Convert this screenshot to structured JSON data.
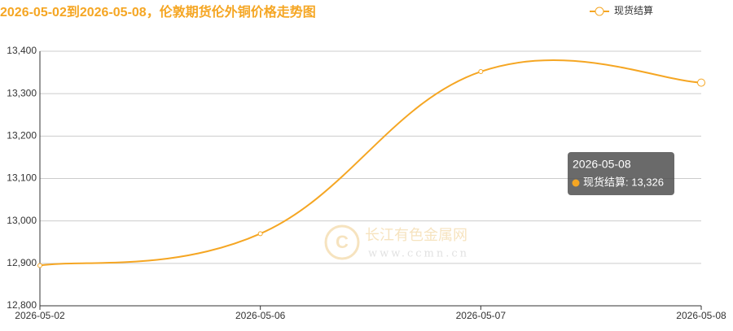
{
  "chart_data": {
    "type": "line",
    "title": "2026-05-02到2026-05-08，伦敦期货伦外铜价格走势图",
    "categories": [
      "2026-05-02",
      "2026-05-06",
      "2026-05-07",
      "2026-05-08"
    ],
    "series": [
      {
        "name": "现货结算",
        "color": "#f5a623",
        "values": [
          12895,
          12970,
          13352,
          13326
        ]
      }
    ],
    "ylim": [
      12800,
      13400
    ],
    "yticks": [
      {
        "value": 12800,
        "label": "12,800"
      },
      {
        "value": 12900,
        "label": "12,900"
      },
      {
        "value": 13000,
        "label": "13,000"
      },
      {
        "value": 13100,
        "label": "13,100"
      },
      {
        "value": 13200,
        "label": "13,200"
      },
      {
        "value": 13300,
        "label": "13,300"
      },
      {
        "value": 13400,
        "label": "13,400"
      }
    ],
    "grid": true,
    "smooth": true,
    "legend": "top-right",
    "tooltip": {
      "label": "现货结算: 13,326"
    },
    "watermark": {
      "name": "长江有色金属网",
      "url": "www.ccmn.cn"
    }
  }
}
